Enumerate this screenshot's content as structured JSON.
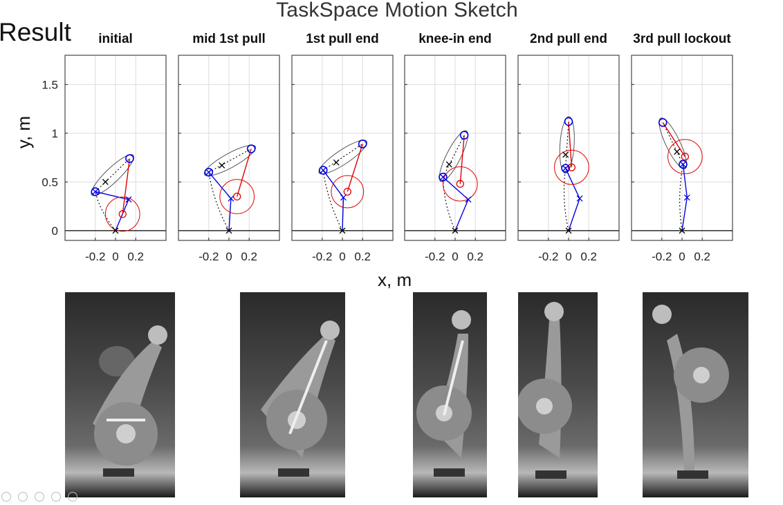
{
  "title": "TaskSpace Motion Sketch",
  "result_label": "Result",
  "colors": {
    "head": "#e00000",
    "arm": "#0000e0",
    "segment": "#000000",
    "grid": "#dcdcdc"
  },
  "chart_data": {
    "type": "scatter",
    "title": "TaskSpace Motion Sketch",
    "xlabel": "x, m",
    "ylabel": "y, m",
    "xlim": [
      -0.5,
      0.5
    ],
    "ylim": [
      -0.1,
      1.8
    ],
    "xticks": [
      -0.2,
      0,
      0.2
    ],
    "xtick_labels": [
      "-0.2",
      "0",
      "0.2"
    ],
    "yticks": [
      0,
      0.5,
      1,
      1.5
    ],
    "ytick_labels": [
      "0",
      "0.5",
      "1",
      "1.5"
    ],
    "grid": true,
    "panels": [
      {
        "title": "initial",
        "foot": [
          0,
          0
        ],
        "knee": [
          0.13,
          0.32
        ],
        "hip": [
          -0.2,
          0.4
        ],
        "shoulder": [
          0.14,
          0.74
        ],
        "segment_mark": [
          -0.1,
          0.5
        ],
        "head_center": [
          0.07,
          0.17
        ],
        "head_radius": 0.17,
        "hip_shoulder_ellipse_minor": 0.07
      },
      {
        "title": "mid 1st pull",
        "foot": [
          0,
          0
        ],
        "knee": [
          0.02,
          0.33
        ],
        "hip": [
          -0.2,
          0.6
        ],
        "shoulder": [
          0.22,
          0.84
        ],
        "segment_mark": [
          -0.07,
          0.67
        ],
        "head_center": [
          0.08,
          0.35
        ],
        "head_radius": 0.17,
        "hip_shoulder_ellipse_minor": 0.07
      },
      {
        "title": "1st pull end",
        "foot": [
          0,
          0
        ],
        "knee": [
          0.01,
          0.34
        ],
        "hip": [
          -0.19,
          0.62
        ],
        "shoulder": [
          0.2,
          0.89
        ],
        "segment_mark": [
          -0.06,
          0.7
        ],
        "head_center": [
          0.05,
          0.4
        ],
        "head_radius": 0.16,
        "hip_shoulder_ellipse_minor": 0.07
      },
      {
        "title": "knee-in end",
        "foot": [
          0,
          0
        ],
        "knee": [
          0.13,
          0.32
        ],
        "hip": [
          -0.12,
          0.55
        ],
        "shoulder": [
          0.09,
          0.98
        ],
        "segment_mark": [
          -0.06,
          0.68
        ],
        "head_center": [
          0.05,
          0.48
        ],
        "head_radius": 0.17,
        "hip_shoulder_ellipse_minor": 0.07
      },
      {
        "title": "2nd pull end",
        "foot": [
          0,
          0
        ],
        "knee": [
          0.11,
          0.33
        ],
        "hip": [
          -0.03,
          0.64
        ],
        "shoulder": [
          0,
          1.12
        ],
        "segment_mark": [
          -0.03,
          0.78
        ],
        "head_center": [
          0.03,
          0.65
        ],
        "head_radius": 0.17,
        "hip_shoulder_ellipse_minor": 0.07
      },
      {
        "title": "3rd pull lockout",
        "foot": [
          0,
          0
        ],
        "knee": [
          0.05,
          0.34
        ],
        "hip": [
          0.01,
          0.68
        ],
        "shoulder": [
          -0.19,
          1.11
        ],
        "segment_mark": [
          -0.05,
          0.81
        ],
        "head_center": [
          0.03,
          0.76
        ],
        "head_radius": 0.17,
        "hip_shoulder_ellipse_minor": 0.07
      }
    ]
  }
}
